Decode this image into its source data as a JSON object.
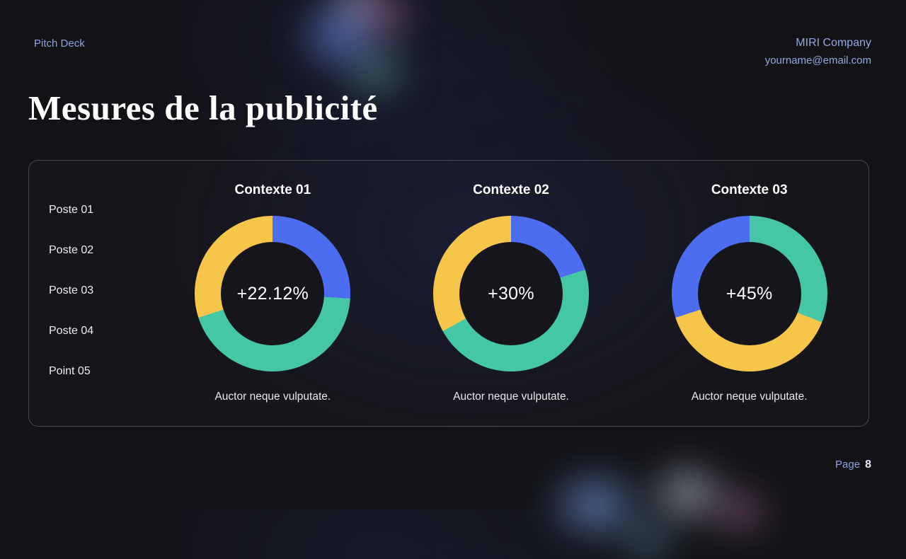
{
  "header": {
    "deck_label": "Pitch Deck",
    "company": "MIRI Company",
    "email": "yourname@email.com"
  },
  "page_title": "Mesures de la publicité",
  "legend": {
    "items": [
      "Poste 01",
      "Poste 02",
      "Poste 03",
      "Poste 04",
      "Point 05"
    ]
  },
  "chart_data": [
    {
      "type": "pie",
      "title": "Contexte 01",
      "center_label": "+22.12%",
      "caption": "Auctor neque vulputate.",
      "segments": [
        {
          "name": "segment-blue",
          "value": 26,
          "color": "#4d6df0"
        },
        {
          "name": "segment-teal",
          "value": 44,
          "color": "#45c7a6"
        },
        {
          "name": "segment-yellow",
          "value": 30,
          "color": "#f6c64a"
        }
      ]
    },
    {
      "type": "pie",
      "title": "Contexte 02",
      "center_label": "+30%",
      "caption": "Auctor neque vulputate.",
      "segments": [
        {
          "name": "segment-blue",
          "value": 20,
          "color": "#4d6df0"
        },
        {
          "name": "segment-teal",
          "value": 47,
          "color": "#45c7a6"
        },
        {
          "name": "segment-yellow",
          "value": 33,
          "color": "#f6c64a"
        }
      ]
    },
    {
      "type": "pie",
      "title": "Contexte 03",
      "center_label": "+45%",
      "caption": "Auctor neque vulputate.",
      "segments": [
        {
          "name": "segment-teal",
          "value": 31,
          "color": "#45c7a6"
        },
        {
          "name": "segment-yellow",
          "value": 39,
          "color": "#f6c64a"
        },
        {
          "name": "segment-blue",
          "value": 30,
          "color": "#4d6df0"
        }
      ]
    }
  ],
  "footer": {
    "page_label": "Page",
    "page_number": "8"
  },
  "colors": {
    "accent_text": "#8ea4dc",
    "blue": "#4d6df0",
    "teal": "#45c7a6",
    "yellow": "#f6c64a",
    "background": "#121217",
    "donut_hole": "#15151b"
  }
}
